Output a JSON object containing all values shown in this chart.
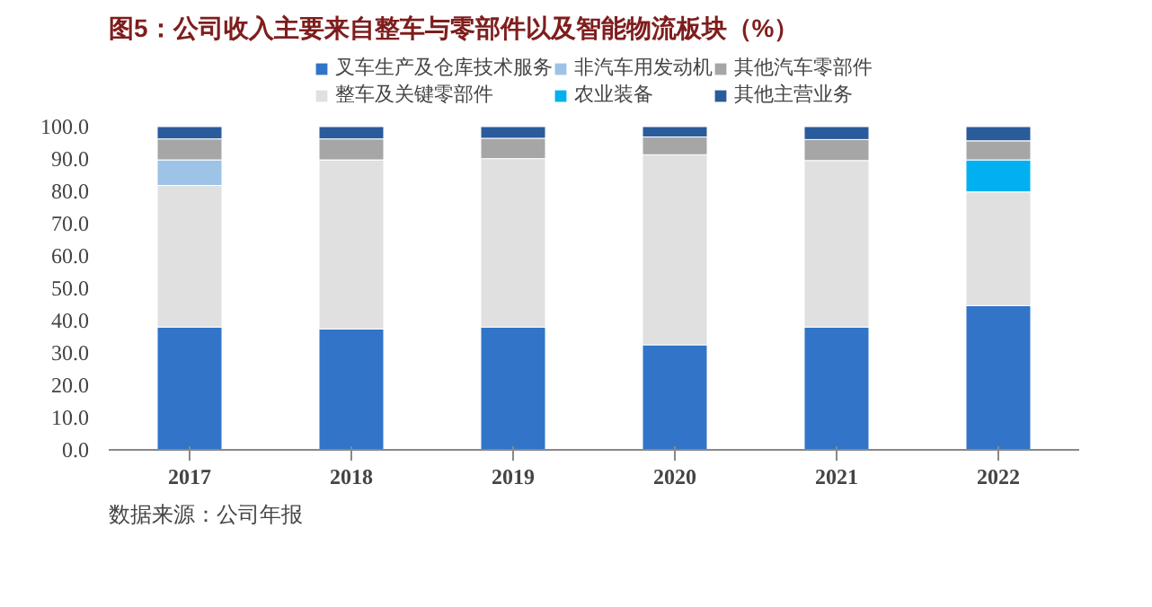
{
  "chart_data": {
    "type": "bar",
    "stacked": true,
    "title": "图5：公司收入主要来自整车与零部件以及智能物流板块（%）",
    "categories": [
      "2017",
      "2018",
      "2019",
      "2020",
      "2021",
      "2022"
    ],
    "series": [
      {
        "name": "叉车生产及仓库技术服务",
        "color": "#3174c8",
        "values": [
          38.0,
          37.4,
          38.0,
          32.5,
          38.0,
          44.6
        ]
      },
      {
        "name": "整车及关键零部件",
        "color": "#e0e0e0",
        "values": [
          43.8,
          52.3,
          52.1,
          58.8,
          51.5,
          35.2
        ]
      },
      {
        "name": "非汽车用发动机",
        "color": "#9dc3e6",
        "values": [
          7.9,
          null,
          null,
          null,
          null,
          null
        ]
      },
      {
        "name": "农业装备",
        "color": "#00b0f0",
        "values": [
          null,
          null,
          null,
          null,
          null,
          9.9
        ]
      },
      {
        "name": "其他汽车零部件",
        "color": "#a6a6a6",
        "values": [
          6.5,
          6.5,
          6.3,
          5.5,
          6.5,
          5.9
        ]
      },
      {
        "name": "其他主营业务",
        "color": "#2a5b9b",
        "values": [
          3.8,
          3.8,
          3.6,
          3.2,
          4.0,
          4.4
        ]
      }
    ],
    "ylim": [
      0,
      100
    ],
    "yticks": [
      {
        "value": 0,
        "label": "0.0"
      },
      {
        "value": 10,
        "label": "10.0"
      },
      {
        "value": 20,
        "label": "20.0"
      },
      {
        "value": 30,
        "label": "30.0"
      },
      {
        "value": 40,
        "label": "40.0"
      },
      {
        "value": 50,
        "label": "50.0"
      },
      {
        "value": 60,
        "label": "60.0"
      },
      {
        "value": 70,
        "label": "70.0"
      },
      {
        "value": 80,
        "label": "80.0"
      },
      {
        "value": 90,
        "label": "90.0"
      },
      {
        "value": 100,
        "label": "100.0"
      }
    ],
    "grid": false,
    "legend": "top",
    "annotations": [
      "数据来源：公司年报"
    ]
  }
}
